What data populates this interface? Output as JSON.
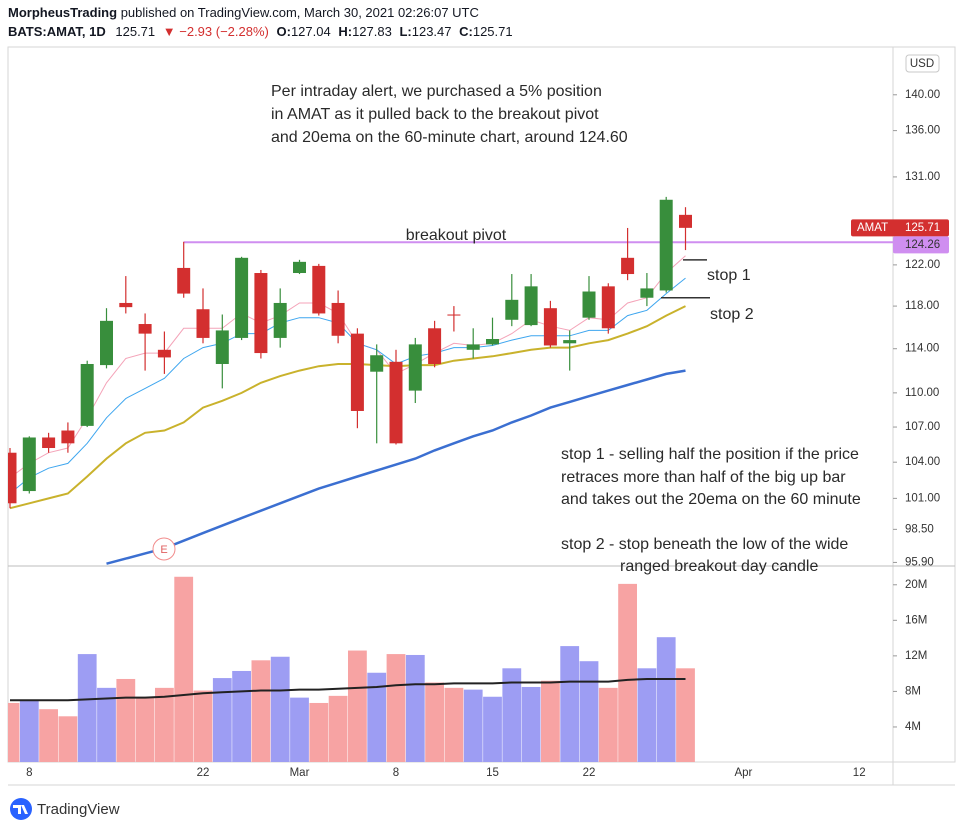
{
  "header": {
    "author": "MorpheusTrading",
    "published": "published on TradingView.com, March 30, 2021 02:26:07 UTC",
    "symbol": "BATS:AMAT, 1D",
    "last": "125.71",
    "change": "▼ −2.93 (−2.28%)",
    "ohlc": [
      {
        "label": "O:",
        "value": "127.04"
      },
      {
        "label": "H:",
        "value": "127.83"
      },
      {
        "label": "L:",
        "value": "123.47"
      },
      {
        "label": "C:",
        "value": "125.71"
      }
    ]
  },
  "chart_data": [
    {
      "type": "candlestick",
      "y_label": "USD",
      "symbol_tag": "AMAT",
      "log_scale": true,
      "grid": false,
      "categories": [
        null,
        "8",
        null,
        null,
        null,
        null,
        null,
        null,
        null,
        null,
        "22",
        null,
        null,
        null,
        null,
        "Mar",
        null,
        null,
        null,
        null,
        "8",
        null,
        null,
        null,
        null,
        "15",
        null,
        null,
        null,
        null,
        "22",
        null,
        null,
        null,
        null,
        null
      ],
      "open": [
        104.8,
        101.6,
        106.1,
        106.7,
        107.1,
        112.5,
        118.3,
        116.3,
        113.9,
        121.7,
        117.7,
        112.6,
        115.0,
        121.2,
        115.0,
        121.2,
        121.9,
        118.3,
        115.4,
        111.9,
        112.8,
        110.2,
        115.9,
        117.2,
        113.9,
        114.4,
        116.7,
        116.2,
        117.8,
        114.5,
        116.9,
        119.9,
        122.7,
        118.8,
        119.5,
        127.04
      ],
      "high": [
        105.2,
        106.2,
        106.5,
        107.4,
        112.9,
        117.8,
        120.9,
        117.3,
        115.6,
        124.3,
        119.7,
        117.2,
        122.8,
        121.5,
        119.7,
        122.5,
        122.1,
        119.5,
        115.9,
        114.4,
        113.9,
        115.0,
        116.6,
        118.0,
        115.9,
        116.9,
        121.1,
        121.1,
        118.5,
        115.7,
        120.9,
        120.2,
        125.7,
        121.2,
        128.9,
        127.83
      ],
      "low": [
        100.2,
        101.4,
        104.8,
        104.8,
        107.0,
        112.2,
        117.3,
        112.0,
        111.7,
        118.8,
        114.5,
        110.4,
        114.8,
        113.1,
        114.1,
        121.1,
        117.1,
        114.5,
        106.9,
        105.6,
        105.5,
        109.1,
        112.3,
        115.6,
        113.1,
        114.3,
        116.1,
        116.1,
        114.1,
        112.0,
        116.7,
        115.4,
        120.5,
        118.0,
        119.3,
        123.47
      ],
      "close": [
        100.6,
        106.1,
        105.2,
        105.6,
        112.6,
        116.6,
        117.9,
        115.4,
        113.2,
        119.2,
        115.0,
        115.7,
        122.7,
        113.6,
        118.3,
        122.3,
        117.3,
        115.2,
        108.4,
        113.4,
        105.6,
        114.4,
        112.6,
        117.1,
        114.4,
        114.9,
        118.6,
        119.9,
        114.3,
        114.8,
        119.4,
        115.9,
        121.1,
        119.7,
        128.6,
        125.71
      ],
      "up_color": "#388e3c",
      "down_color": "#d32f2f",
      "overlays": [
        {
          "color": "#f4a3b8",
          "width": 1,
          "values": [
            102.7,
            103.9,
            104.8,
            105.2,
            107.8,
            110.9,
            113.1,
            113.6,
            113.6,
            115.9,
            115.9,
            115.9,
            117.3,
            116.4,
            117.1,
            118.3,
            118.3,
            117.3,
            114.5,
            113.9,
            111.7,
            112.6,
            113.6,
            114.5,
            114.3,
            114.5,
            115.4,
            116.7,
            116.1,
            115.7,
            116.9,
            116.7,
            118.3,
            118.8,
            121.2,
            122.9
          ]
        },
        {
          "color": "#3ea6ef",
          "width": 1,
          "values": [
            101.4,
            102.7,
            103.5,
            103.9,
            105.6,
            107.8,
            109.5,
            110.4,
            111.3,
            113.1,
            114.1,
            114.5,
            115.4,
            115.4,
            116.4,
            116.9,
            116.9,
            116.4,
            114.5,
            113.9,
            112.6,
            113.3,
            113.6,
            114.1,
            114.1,
            114.3,
            114.8,
            115.2,
            115.2,
            115.2,
            115.7,
            115.7,
            117.1,
            117.6,
            119.2,
            120.7
          ]
        },
        {
          "color": "#c9b22c",
          "width": 2,
          "values": [
            100.2,
            100.6,
            101.0,
            101.4,
            102.8,
            104.3,
            105.6,
            106.5,
            106.7,
            107.4,
            108.7,
            109.3,
            110.0,
            110.9,
            111.5,
            112.0,
            112.4,
            112.6,
            112.6,
            112.5,
            112.4,
            112.5,
            112.5,
            112.9,
            113.1,
            113.3,
            113.6,
            113.9,
            114.1,
            114.1,
            114.5,
            114.8,
            115.4,
            116.1,
            117.1,
            118.0
          ]
        },
        {
          "color": "#3b6fd1",
          "width": 2.5,
          "values": [
            null,
            null,
            null,
            null,
            null,
            95.8,
            96.2,
            96.6,
            97.0,
            97.6,
            98.2,
            98.8,
            99.4,
            100.0,
            100.6,
            101.2,
            101.8,
            102.3,
            102.8,
            103.3,
            103.8,
            104.3,
            105.0,
            105.6,
            106.2,
            106.7,
            107.4,
            108.0,
            108.7,
            109.2,
            109.7,
            110.2,
            110.7,
            111.2,
            111.7,
            112.0
          ]
        }
      ],
      "levels": [
        {
          "label": "breakout pivot",
          "value": 124.26,
          "color": "#cf8ef0"
        },
        {
          "label": "stop 1",
          "value": 122.5,
          "color": "#333333"
        },
        {
          "label": "stop 2",
          "value": 118.8,
          "color": "#333333"
        }
      ],
      "annotations": [
        [
          "Per intraday alert, we purchased a 5% position",
          "in AMAT as it pulled back to the breakout pivot",
          "and 20ema on the 60-minute chart, around 124.60"
        ],
        [
          "stop 1 - selling half the position if the price",
          "retraces more than half of the big up bar",
          "and takes out the 20ema on the 60 minute"
        ],
        [
          "stop 2 - stop beneath the low of the wide",
          "ranged breakout day candle"
        ]
      ],
      "earnings_marker": "E",
      "ylim": [
        95.7,
        145.4
      ],
      "yticks": [
        {
          "value": 95.9,
          "label": "95.90"
        },
        {
          "value": 98.5,
          "label": "98.50"
        },
        {
          "value": 101,
          "label": "101.00"
        },
        {
          "value": 104,
          "label": "104.00"
        },
        {
          "value": 107,
          "label": "107.00"
        },
        {
          "value": 110,
          "label": "110.00"
        },
        {
          "value": 114,
          "label": "114.00"
        },
        {
          "value": 118,
          "label": "118.00"
        },
        {
          "value": 122,
          "label": "122.00"
        },
        {
          "value": 131,
          "label": "131.00"
        },
        {
          "value": 136,
          "label": "136.00"
        },
        {
          "value": 140,
          "label": "140.00"
        }
      ],
      "xticks": [
        {
          "value": 38,
          "label": "Apr"
        },
        {
          "value": 44,
          "label": "12"
        }
      ]
    },
    {
      "type": "bar",
      "up_color": "#9d9df3",
      "down_color": "#f7a3a3",
      "values": [
        6700000,
        7000000,
        6000000,
        5200000,
        12200000,
        8400000,
        9400000,
        7400000,
        8400000,
        20900000,
        8100000,
        9500000,
        10300000,
        11500000,
        11900000,
        7300000,
        6700000,
        7500000,
        12600000,
        10100000,
        12200000,
        12100000,
        9000000,
        8400000,
        8200000,
        7400000,
        10600000,
        8500000,
        9200000,
        13100000,
        11400000,
        8400000,
        20100000,
        10600000,
        14100000,
        10600000
      ],
      "ma": {
        "color": "#222222",
        "values": [
          7000000,
          7000000,
          7000000,
          7000000,
          7100000,
          7200000,
          7300000,
          7300000,
          7400000,
          7600000,
          7800000,
          7900000,
          8000000,
          8100000,
          8100000,
          8200000,
          8200000,
          8300000,
          8400000,
          8500000,
          8700000,
          8800000,
          8800000,
          8900000,
          8900000,
          8900000,
          9000000,
          9000000,
          9000000,
          9100000,
          9100000,
          9100000,
          9300000,
          9400000,
          9400000,
          9400000
        ]
      },
      "ylim": [
        0,
        22000000
      ],
      "yticks": [
        {
          "value": 4000000,
          "label": "4M"
        },
        {
          "value": 8000000,
          "label": "8M"
        },
        {
          "value": 12000000,
          "label": "12M"
        },
        {
          "value": 16000000,
          "label": "16M"
        },
        {
          "value": 20000000,
          "label": "20M"
        }
      ]
    }
  ],
  "footer": {
    "brand": "TradingView"
  }
}
